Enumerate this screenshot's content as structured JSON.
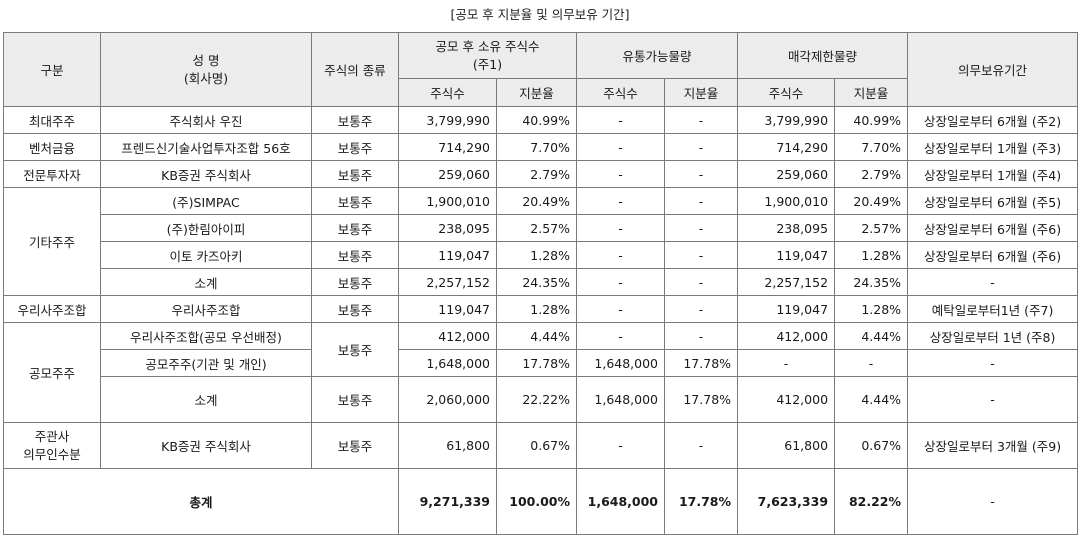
{
  "caption": "[공모 후 지분율 및 의무보유 기간]",
  "headers": {
    "category": "구분",
    "name_line1": "성 명",
    "name_line2": "(회사명)",
    "stock_type": "주식의 종류",
    "post_ipo_line1": "공모 후 소유 주식수",
    "post_ipo_line2": "(주1)",
    "tradable": "유통가능물량",
    "restricted": "매각제한물량",
    "lockup": "의무보유기간",
    "shares": "주식수",
    "ratio": "지분율"
  },
  "rows": [
    {
      "cat": "최대주주",
      "name": "주식회사 우진",
      "type": "보통주",
      "shares": "3,799,990",
      "ratio": "40.99%",
      "t_shares": "-",
      "t_ratio": "-",
      "r_shares": "3,799,990",
      "r_ratio": "40.99%",
      "lockup": "상장일로부터 6개월 (주2)"
    },
    {
      "cat": "벤처금융",
      "name": "프렌드신기술사업투자조합 56호",
      "type": "보통주",
      "shares": "714,290",
      "ratio": "7.70%",
      "t_shares": "-",
      "t_ratio": "-",
      "r_shares": "714,290",
      "r_ratio": "7.70%",
      "lockup": "상장일로부터 1개월 (주3)"
    },
    {
      "cat": "전문투자자",
      "name": "KB증권 주식회사",
      "type": "보통주",
      "shares": "259,060",
      "ratio": "2.79%",
      "t_shares": "-",
      "t_ratio": "-",
      "r_shares": "259,060",
      "r_ratio": "2.79%",
      "lockup": "상장일로부터 1개월 (주4)"
    },
    {
      "cat": "기타주주",
      "name": "(주)SIMPAC",
      "type": "보통주",
      "shares": "1,900,010",
      "ratio": "20.49%",
      "t_shares": "-",
      "t_ratio": "-",
      "r_shares": "1,900,010",
      "r_ratio": "20.49%",
      "lockup": "상장일로부터 6개월 (주5)"
    },
    {
      "name": "(주)한림아이피",
      "type": "보통주",
      "shares": "238,095",
      "ratio": "2.57%",
      "t_shares": "-",
      "t_ratio": "-",
      "r_shares": "238,095",
      "r_ratio": "2.57%",
      "lockup": "상장일로부터 6개월 (주6)"
    },
    {
      "name": "이토 카즈아키",
      "type": "보통주",
      "shares": "119,047",
      "ratio": "1.28%",
      "t_shares": "-",
      "t_ratio": "-",
      "r_shares": "119,047",
      "r_ratio": "1.28%",
      "lockup": "상장일로부터 6개월 (주6)"
    },
    {
      "name": "소계",
      "type": "보통주",
      "shares": "2,257,152",
      "ratio": "24.35%",
      "t_shares": "-",
      "t_ratio": "-",
      "r_shares": "2,257,152",
      "r_ratio": "24.35%",
      "lockup": "-"
    },
    {
      "cat": "우리사주조합",
      "name": "우리사주조합",
      "type": "보통주",
      "shares": "119,047",
      "ratio": "1.28%",
      "t_shares": "-",
      "t_ratio": "-",
      "r_shares": "119,047",
      "r_ratio": "1.28%",
      "lockup": "예탁일로부터1년 (주7)"
    },
    {
      "cat": "공모주주",
      "name": "우리사주조합(공모 우선배정)",
      "type": "보통주",
      "shares": "412,000",
      "ratio": "4.44%",
      "t_shares": "-",
      "t_ratio": "-",
      "r_shares": "412,000",
      "r_ratio": "4.44%",
      "lockup": "상장일로부터 1년 (주8)"
    },
    {
      "name": "공모주주(기관 및 개인)",
      "shares": "1,648,000",
      "ratio": "17.78%",
      "t_shares": "1,648,000",
      "t_ratio": "17.78%",
      "r_shares": "-",
      "r_ratio": "-",
      "lockup": "-"
    },
    {
      "name": "소계",
      "type": "보통주",
      "shares": "2,060,000",
      "ratio": "22.22%",
      "t_shares": "1,648,000",
      "t_ratio": "17.78%",
      "r_shares": "412,000",
      "r_ratio": "4.44%",
      "lockup": "-"
    },
    {
      "cat_line1": "주관사",
      "cat_line2": "의무인수분",
      "name": "KB증권 주식회사",
      "type": "보통주",
      "shares": "61,800",
      "ratio": "0.67%",
      "t_shares": "-",
      "t_ratio": "-",
      "r_shares": "61,800",
      "r_ratio": "0.67%",
      "lockup": "상장일로부터 3개월 (주9)"
    }
  ],
  "total": {
    "label": "총계",
    "shares": "9,271,339",
    "ratio": "100.00%",
    "t_shares": "1,648,000",
    "t_ratio": "17.78%",
    "r_shares": "7,623,339",
    "r_ratio": "82.22%",
    "lockup": "-"
  }
}
